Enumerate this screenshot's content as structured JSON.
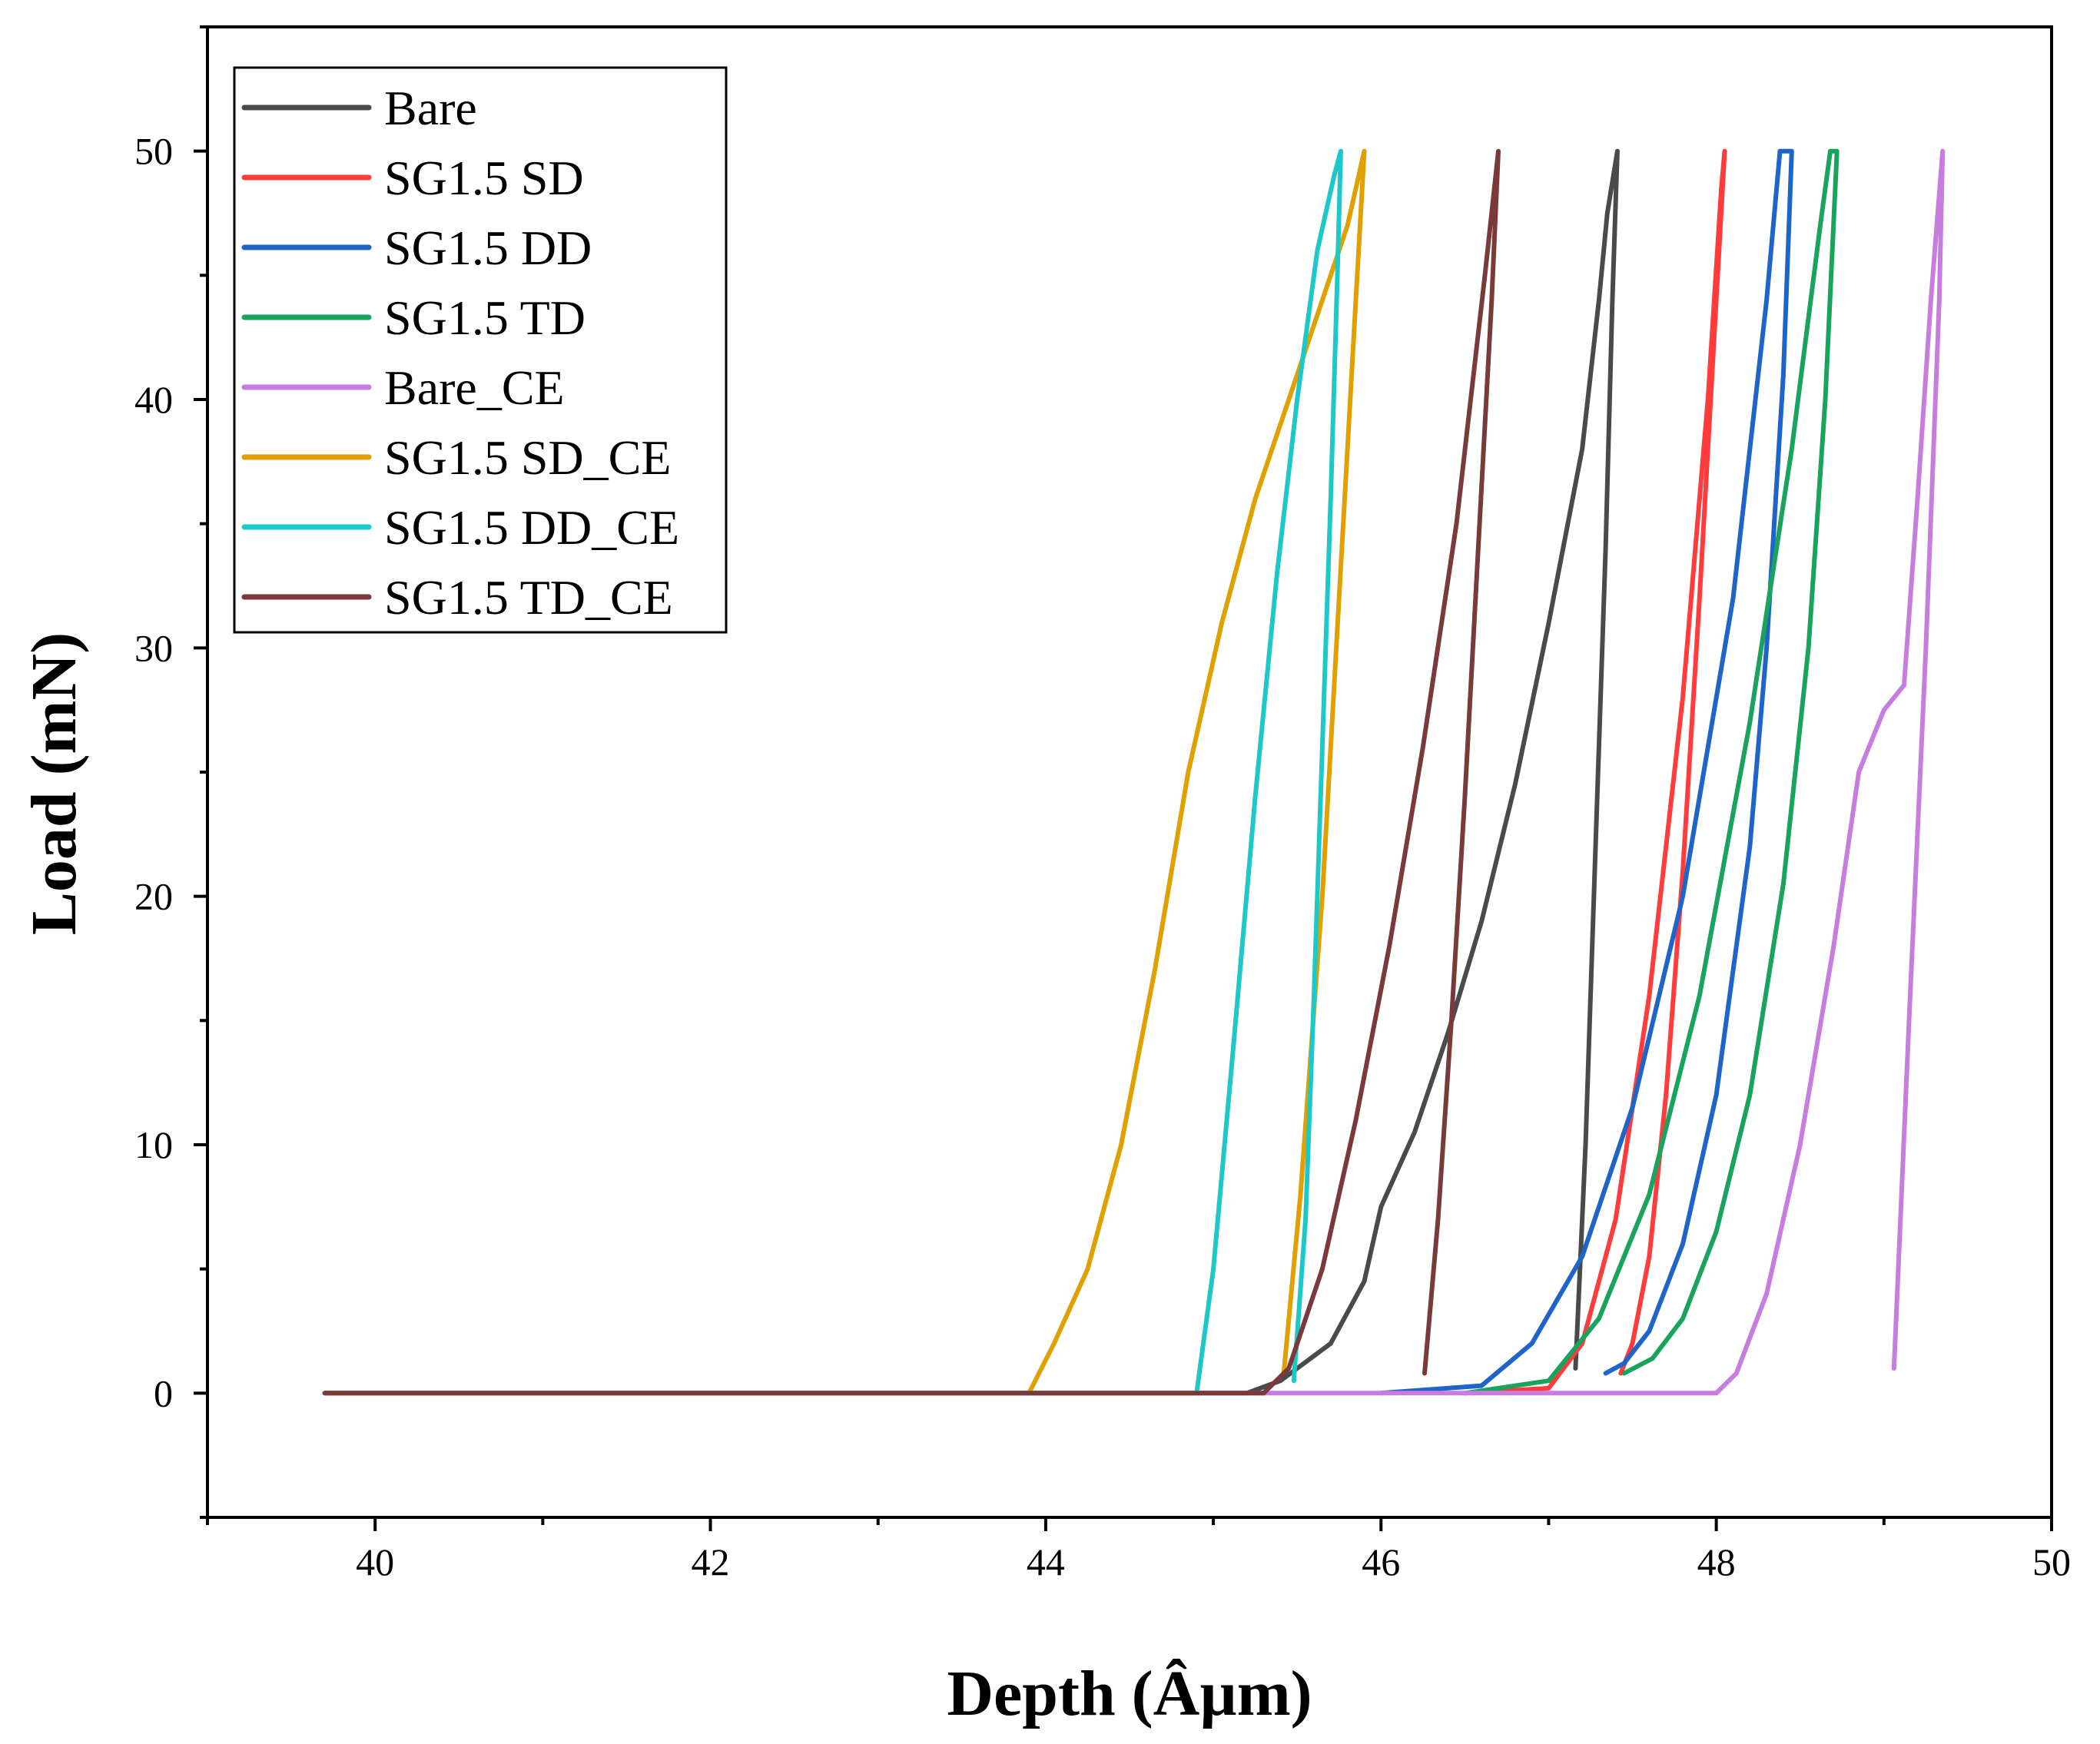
{
  "chart_data": {
    "type": "line",
    "title": "",
    "xlabel": "Depth (Âµm)",
    "ylabel": "Load (mN)",
    "xlim": [
      39,
      50
    ],
    "ylim": [
      -5,
      55
    ],
    "xticks": [
      40,
      42,
      44,
      46,
      48,
      50
    ],
    "yticks": [
      0,
      10,
      20,
      30,
      40,
      50
    ],
    "grid": false,
    "legend_position": "top-left",
    "series": [
      {
        "name": "Bare",
        "color": "#4a4a4a",
        "x": [
          39.7,
          45.2,
          45.4,
          45.7,
          45.9,
          46.0,
          46.2,
          46.4,
          46.6,
          46.8,
          47.0,
          47.2,
          47.3,
          47.35,
          47.41,
          47.38,
          47.34,
          47.28,
          47.22,
          47.16
        ],
        "y": [
          0,
          0,
          0.5,
          2.0,
          4.5,
          7.5,
          10.5,
          14.5,
          19.0,
          24.5,
          31.0,
          38.0,
          44.0,
          47.5,
          50.0,
          44.0,
          34.0,
          22.0,
          10.0,
          1.0
        ]
      },
      {
        "name": "SG1.5 SD",
        "color": "#ff3b3b",
        "x": [
          46.5,
          47.0,
          47.2,
          47.4,
          47.6,
          47.8,
          47.95,
          48.03,
          48.05,
          48.0,
          47.9,
          47.8,
          47.7,
          47.6,
          47.5,
          47.43
        ],
        "y": [
          0,
          0.2,
          2.0,
          7.0,
          16.0,
          28.0,
          40.0,
          48.5,
          50.0,
          44.0,
          32.0,
          21.0,
          12.0,
          5.5,
          2.0,
          0.8
        ]
      },
      {
        "name": "SG1.5 DD",
        "color": "#1f64c8",
        "x": [
          46.0,
          46.6,
          46.9,
          47.2,
          47.5,
          47.8,
          48.1,
          48.3,
          48.38,
          48.45,
          48.4,
          48.3,
          48.2,
          48.0,
          47.8,
          47.6,
          47.45,
          47.34
        ],
        "y": [
          0,
          0.3,
          2.0,
          5.5,
          11.5,
          20.0,
          32.0,
          44.0,
          50.0,
          50.0,
          41.0,
          30.0,
          22.0,
          12.0,
          6.0,
          2.5,
          1.2,
          0.8
        ]
      },
      {
        "name": "SG1.5 TD",
        "color": "#19a35c",
        "x": [
          46.5,
          47.0,
          47.3,
          47.6,
          47.9,
          48.2,
          48.45,
          48.62,
          48.68,
          48.72,
          48.65,
          48.55,
          48.4,
          48.2,
          48.0,
          47.8,
          47.62,
          47.45
        ],
        "y": [
          0,
          0.5,
          3.0,
          8.0,
          16.0,
          27.0,
          38.0,
          47.0,
          50.0,
          50.0,
          40.0,
          30.0,
          20.5,
          12.0,
          6.5,
          3.0,
          1.4,
          0.8
        ]
      },
      {
        "name": "Bare_CE",
        "color": "#c77ddf",
        "x": [
          45.0,
          48.0,
          48.12,
          48.3,
          48.5,
          48.7,
          48.85,
          49.0,
          49.12,
          49.2,
          49.28,
          49.35,
          49.33,
          49.25,
          49.15,
          49.06
        ],
        "y": [
          0,
          0,
          0.8,
          4.0,
          10.0,
          18.0,
          25.0,
          27.5,
          28.5,
          36.0,
          44.0,
          50.0,
          44.0,
          30.0,
          15.0,
          1.0
        ]
      },
      {
        "name": "SG1.5 SD_CE",
        "color": "#e0a000",
        "x": [
          39.7,
          43.9,
          44.05,
          44.25,
          44.45,
          44.65,
          44.85,
          45.05,
          45.25,
          45.45,
          45.65,
          45.8,
          45.9,
          45.85,
          45.75,
          45.65,
          45.52,
          45.42
        ],
        "y": [
          0,
          0,
          2.0,
          5.0,
          10.0,
          17.0,
          25.0,
          31.0,
          36.0,
          40.0,
          44.0,
          47.0,
          50.0,
          44.0,
          32.0,
          20.0,
          8.0,
          0.8
        ]
      },
      {
        "name": "SG1.5 DD_CE",
        "color": "#1cc8c8",
        "x": [
          39.7,
          44.9,
          45.0,
          45.12,
          45.25,
          45.38,
          45.5,
          45.62,
          45.72,
          45.76,
          45.74,
          45.7,
          45.65,
          45.6,
          45.55,
          45.48
        ],
        "y": [
          0,
          0,
          5.0,
          14.0,
          24.0,
          33.0,
          40.0,
          46.0,
          49.0,
          50.0,
          45.0,
          36.0,
          26.0,
          16.0,
          7.0,
          0.5
        ]
      },
      {
        "name": "SG1.5 TD_CE",
        "color": "#7a3a3a",
        "x": [
          39.7,
          45.3,
          45.45,
          45.65,
          45.85,
          46.05,
          46.25,
          46.45,
          46.62,
          46.7,
          46.66,
          46.58,
          46.5,
          46.42,
          46.34,
          46.26
        ],
        "y": [
          0,
          0,
          1.0,
          5.0,
          11.0,
          18.0,
          26.0,
          35.0,
          45.0,
          50.0,
          44.0,
          34.0,
          24.0,
          15.0,
          7.0,
          0.8
        ]
      }
    ]
  }
}
